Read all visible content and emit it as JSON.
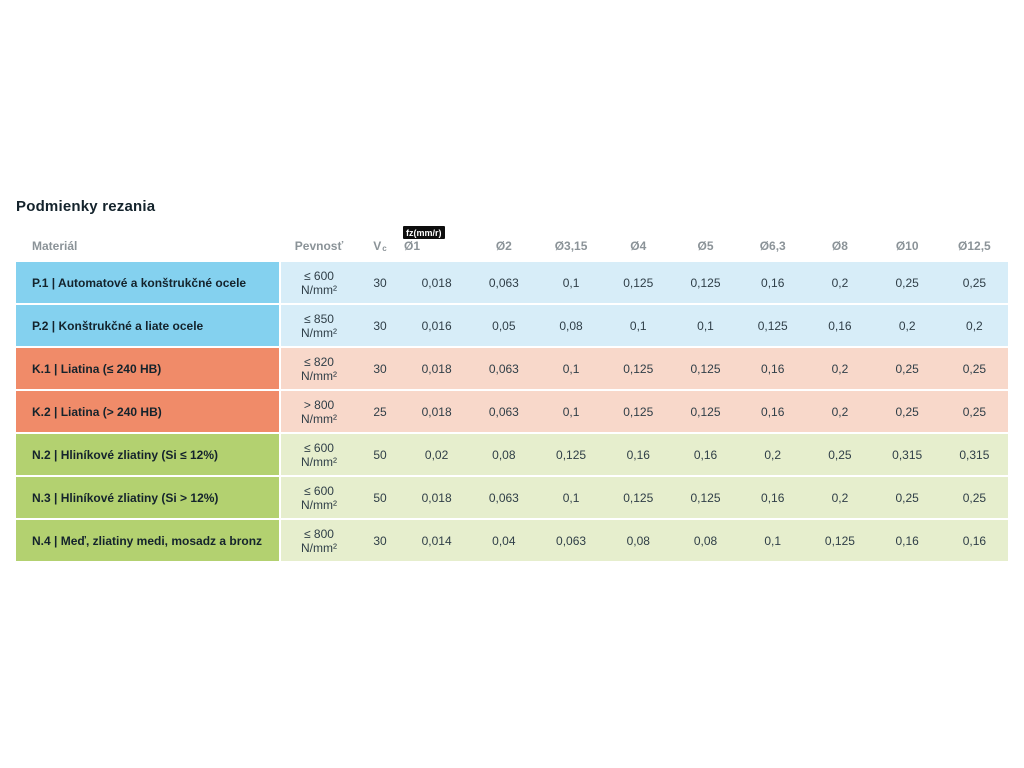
{
  "page": {
    "title": "Podmienky rezania"
  },
  "table": {
    "headers": {
      "material": "Materiál",
      "strength": "Pevnosť",
      "vc_main": "V",
      "vc_sub": "c",
      "fz_badge": "fz(mm/r)",
      "diameters": [
        "Ø1",
        "Ø2",
        "Ø3,15",
        "Ø4",
        "Ø5",
        "Ø6,3",
        "Ø8",
        "Ø10",
        "Ø12,5"
      ]
    },
    "rows": [
      {
        "group": "blue",
        "material": "P.1 | Automatové a konštrukčné ocele",
        "strength": "≤ 600",
        "strength_unit": "N/mm²",
        "vc": "30",
        "values": [
          "0,018",
          "0,063",
          "0,1",
          "0,125",
          "0,125",
          "0,16",
          "0,2",
          "0,25",
          "0,25"
        ]
      },
      {
        "group": "blue",
        "material": "P.2 | Konštrukčné a liate ocele",
        "strength": "≤ 850",
        "strength_unit": "N/mm²",
        "vc": "30",
        "values": [
          "0,016",
          "0,05",
          "0,08",
          "0,1",
          "0,1",
          "0,125",
          "0,16",
          "0,2",
          "0,2"
        ]
      },
      {
        "group": "red",
        "material": "K.1 | Liatina (≤ 240 HB)",
        "strength": "≤ 820",
        "strength_unit": "N/mm²",
        "vc": "30",
        "values": [
          "0,018",
          "0,063",
          "0,1",
          "0,125",
          "0,125",
          "0,16",
          "0,2",
          "0,25",
          "0,25"
        ]
      },
      {
        "group": "red",
        "material": "K.2 | Liatina (> 240 HB)",
        "strength": "> 800",
        "strength_unit": "N/mm²",
        "vc": "25",
        "values": [
          "0,018",
          "0,063",
          "0,1",
          "0,125",
          "0,125",
          "0,16",
          "0,2",
          "0,25",
          "0,25"
        ]
      },
      {
        "group": "green",
        "material": "N.2 | Hliníkové zliatiny (Si ≤ 12%)",
        "strength": "≤ 600",
        "strength_unit": "N/mm²",
        "vc": "50",
        "values": [
          "0,02",
          "0,08",
          "0,125",
          "0,16",
          "0,16",
          "0,2",
          "0,25",
          "0,315",
          "0,315"
        ]
      },
      {
        "group": "green",
        "material": "N.3 | Hliníkové zliatiny (Si > 12%)",
        "strength": "≤ 600",
        "strength_unit": "N/mm²",
        "vc": "50",
        "values": [
          "0,018",
          "0,063",
          "0,1",
          "0,125",
          "0,125",
          "0,16",
          "0,2",
          "0,25",
          "0,25"
        ]
      },
      {
        "group": "green",
        "material": "N.4 | Meď, zliatiny medi, mosadz a bronz",
        "strength": "≤ 800",
        "strength_unit": "N/mm²",
        "vc": "30",
        "values": [
          "0,014",
          "0,04",
          "0,063",
          "0,08",
          "0,08",
          "0,1",
          "0,125",
          "0,16",
          "0,16"
        ]
      }
    ],
    "colors": {
      "blue": {
        "strong": "#84d1ef",
        "light": "#d7edf8"
      },
      "red": {
        "strong": "#f08b69",
        "light": "#f8d8ca"
      },
      "green": {
        "strong": "#b3d170",
        "light": "#e6eecd"
      }
    }
  }
}
